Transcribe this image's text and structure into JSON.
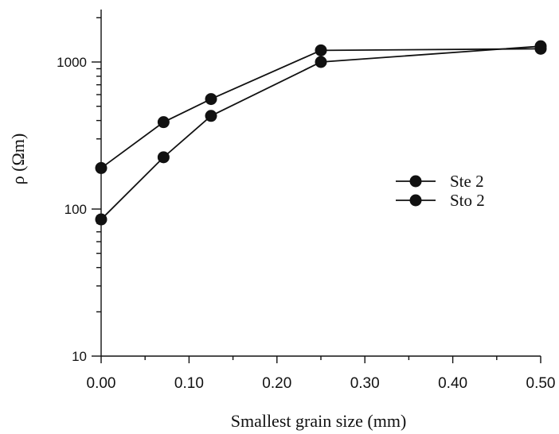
{
  "chart_data": {
    "type": "line",
    "xlabel": "Smallest grain size (mm)",
    "ylabel": "ρ (Ωm)",
    "yscale": "log",
    "xlim": [
      0,
      0.5
    ],
    "ylim": [
      10,
      2500
    ],
    "xticks": [
      0,
      0.1,
      0.2,
      0.3,
      0.4,
      0.5
    ],
    "xtick_labels": [
      "0.00",
      "0.10",
      "0.20",
      "0.30",
      "0.40",
      "0.50"
    ],
    "yticks": [
      10,
      100,
      1000
    ],
    "ytick_labels": [
      "10",
      "100",
      "1000"
    ],
    "legend_position": "right",
    "colors": {
      "line": "#111111",
      "marker": "#111111"
    },
    "series": [
      {
        "name": "Ste 2",
        "x": [
          0,
          0.071,
          0.125,
          0.25,
          0.5
        ],
        "y": [
          190,
          390,
          560,
          1200,
          1230
        ]
      },
      {
        "name": "Sto 2",
        "x": [
          0,
          0.071,
          0.125,
          0.25,
          0.5
        ],
        "y": [
          85,
          225,
          430,
          1000,
          1280
        ]
      }
    ]
  }
}
